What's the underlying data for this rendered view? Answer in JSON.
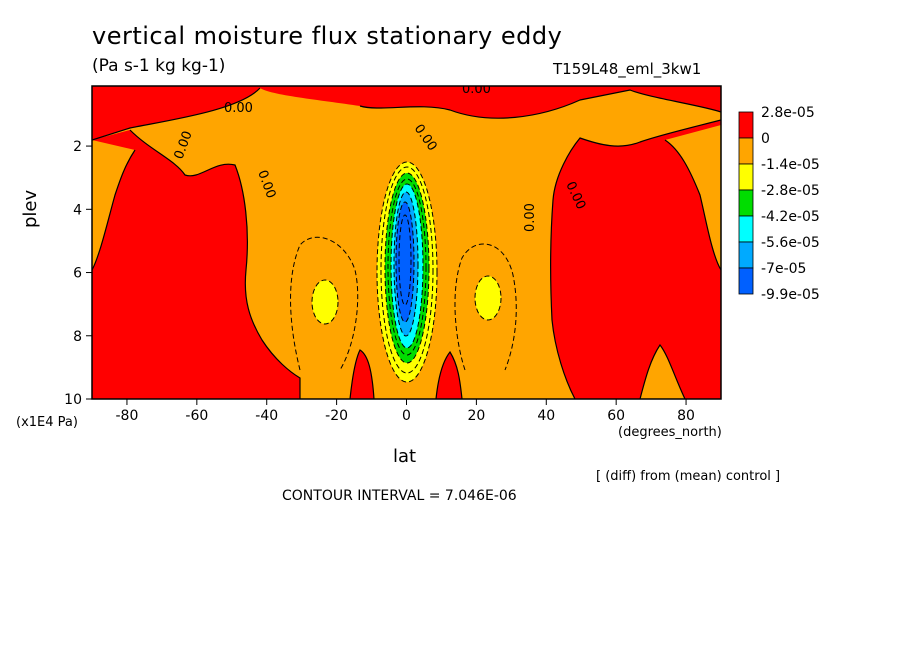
{
  "chart_data": {
    "type": "heatmap",
    "title": "vertical moisture flux stationary eddy",
    "units": "(Pa s-1 kg kg-1)",
    "run_label": "T159L48_eml_3kw1",
    "xlabel": "lat",
    "ylabel": "plev",
    "x_units": "(degrees_north)",
    "y_units": "(x1E4 Pa)",
    "xlim": [
      -90,
      90
    ],
    "ylim": [
      0.1,
      10
    ],
    "y_inverted": true,
    "x_ticks": [
      -80,
      -60,
      -40,
      -20,
      0,
      20,
      40,
      60,
      80
    ],
    "y_ticks": [
      2,
      4,
      6,
      8,
      10
    ],
    "colorbar_labels": [
      "2.8e-05",
      "0",
      "-1.4e-05",
      "-2.8e-05",
      "-4.2e-05",
      "-5.6e-05",
      "-7e-05",
      "-9.9e-05"
    ],
    "colorbar_colors": [
      "#ff0000",
      "#ffa500",
      "#ffff00",
      "#00dd00",
      "#00ffff",
      "#00aaff",
      "#0060ff"
    ],
    "contour_interval": "CONTOUR INTERVAL = 7.046E-06",
    "note": "[ (diff) from (mean) control ]",
    "contour_label": "0.00",
    "features": [
      {
        "name": "equatorial minimum",
        "lat": 0,
        "plev_range": [
          3,
          9
        ],
        "min_value": -9.9e-05
      },
      {
        "name": "yellow patch south",
        "lat": -27,
        "plev": 7,
        "value": -2.1e-05
      },
      {
        "name": "yellow patch north",
        "lat": 25,
        "plev": 7,
        "value": -2.1e-05
      }
    ],
    "grid": false,
    "legend": "right"
  }
}
